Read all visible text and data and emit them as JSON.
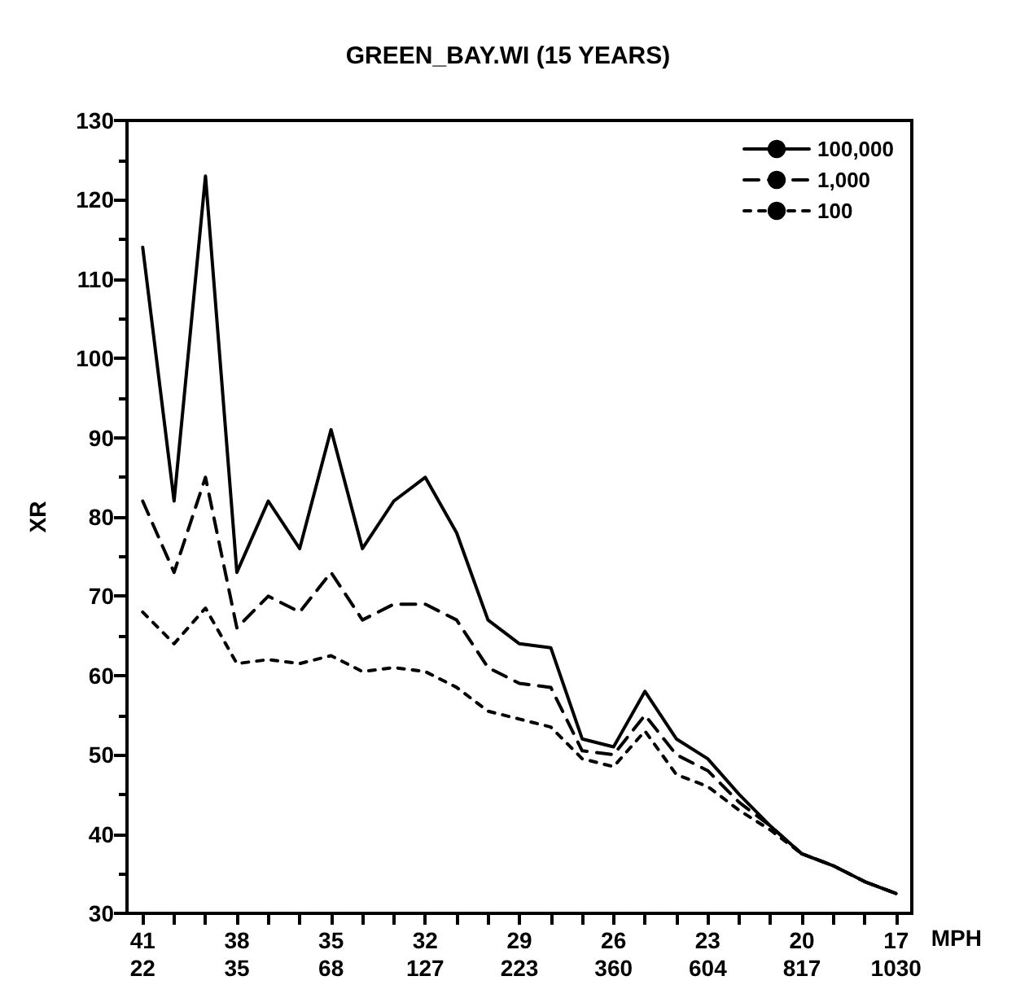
{
  "chart_data": {
    "type": "line",
    "title": "GREEN_BAY.WI (15 YEARS)",
    "xlabel": "MPH",
    "ylabel": "XR",
    "categories": [
      "41\n22",
      null,
      null,
      "38\n35",
      null,
      null,
      "35\n68",
      null,
      null,
      "32\n127",
      null,
      null,
      "29\n223",
      null,
      null,
      "26\n360",
      null,
      null,
      "23\n604",
      null,
      null,
      "20\n817",
      null,
      null,
      "17\n1030"
    ],
    "series": [
      {
        "name": "100,000",
        "color": "#000000",
        "line_style": "solid",
        "values": [
          114,
          82,
          123,
          73,
          82,
          76,
          91,
          76,
          82,
          85,
          78,
          67,
          64,
          63.5,
          52,
          51,
          58,
          52,
          49.5,
          45,
          41,
          37.5,
          36,
          34,
          32.5
        ]
      },
      {
        "name": "1,000",
        "color": "#000000",
        "line_style": "dashed",
        "values": [
          82,
          73,
          85,
          66,
          70,
          68,
          73,
          67,
          69,
          69,
          67,
          61,
          59,
          58.5,
          50.5,
          50,
          55,
          50,
          48,
          44,
          41,
          37.5,
          36,
          34,
          32.5
        ]
      },
      {
        "name": "100",
        "color": "#000000",
        "line_style": "dotted",
        "values": [
          68,
          64,
          68.5,
          61.5,
          62,
          61.5,
          62.5,
          60.5,
          61,
          60.5,
          58.5,
          55.5,
          54.5,
          53.5,
          49.5,
          48.5,
          53,
          47.5,
          46,
          43,
          40.5,
          37.5,
          36,
          34,
          32.5
        ]
      }
    ],
    "ylim": [
      30,
      130
    ],
    "yticks": [
      30,
      40,
      50,
      60,
      70,
      80,
      90,
      100,
      110,
      120,
      130
    ],
    "grid": false,
    "legend": "top right",
    "marker": "none"
  }
}
